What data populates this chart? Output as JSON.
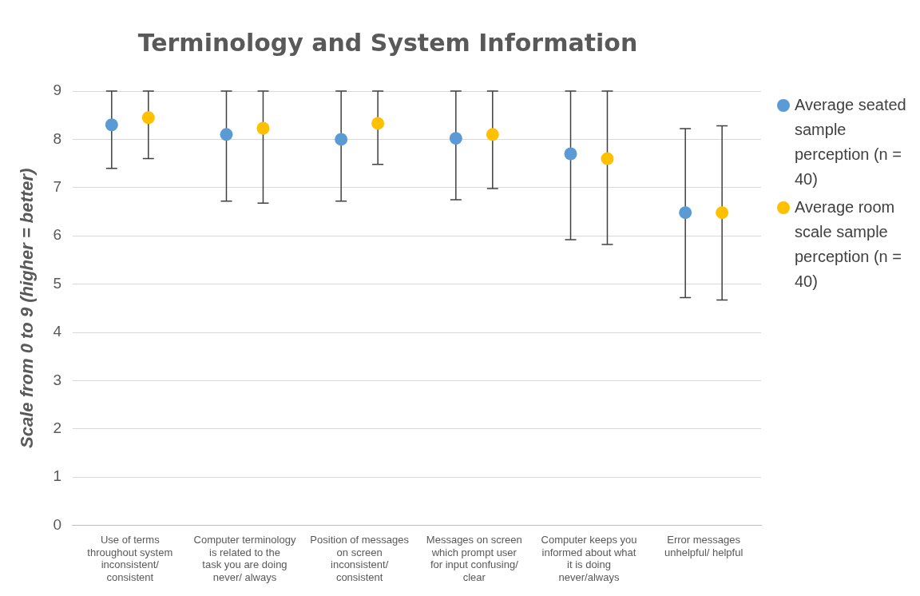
{
  "chart_data": {
    "type": "scatter",
    "title": "Terminology and System Information",
    "ylabel": "Scale from 0 to 9 (higher = better)",
    "categories": [
      "Use of terms throughout system inconsistent/ consistent",
      "Computer terminology is related to the task you are doing never/ always",
      "Position of messages on screen inconsistent/ consistent",
      "Messages on screen which prompt user for input confusing/ clear",
      "Computer keeps you informed about what it is doing never/always",
      "Error messages unhelpful/ helpful"
    ],
    "series": [
      {
        "name": "Average seated sample perception (n = 40)",
        "color": "#5b9bd5",
        "values": [
          8.3,
          8.1,
          8.0,
          8.02,
          7.7,
          6.48
        ],
        "errors": [
          [
            7.4,
            9
          ],
          [
            6.72,
            9
          ],
          [
            6.72,
            9
          ],
          [
            6.75,
            9
          ],
          [
            5.92,
            9
          ],
          [
            4.72,
            8.22
          ]
        ]
      },
      {
        "name": "Average room scale sample perception (n = 40)",
        "color": "#ffc000",
        "values": [
          8.45,
          8.23,
          8.33,
          8.1,
          7.6,
          6.48
        ],
        "errors": [
          [
            7.6,
            9
          ],
          [
            6.68,
            9
          ],
          [
            7.48,
            9
          ],
          [
            6.98,
            9
          ],
          [
            5.82,
            9
          ],
          [
            4.67,
            8.28
          ]
        ]
      }
    ],
    "ylim": [
      0,
      9
    ],
    "yticks": [
      0,
      1,
      2,
      3,
      4,
      5,
      6,
      7,
      8,
      9
    ],
    "grid": "y",
    "legend": "right",
    "marker": "circle"
  }
}
